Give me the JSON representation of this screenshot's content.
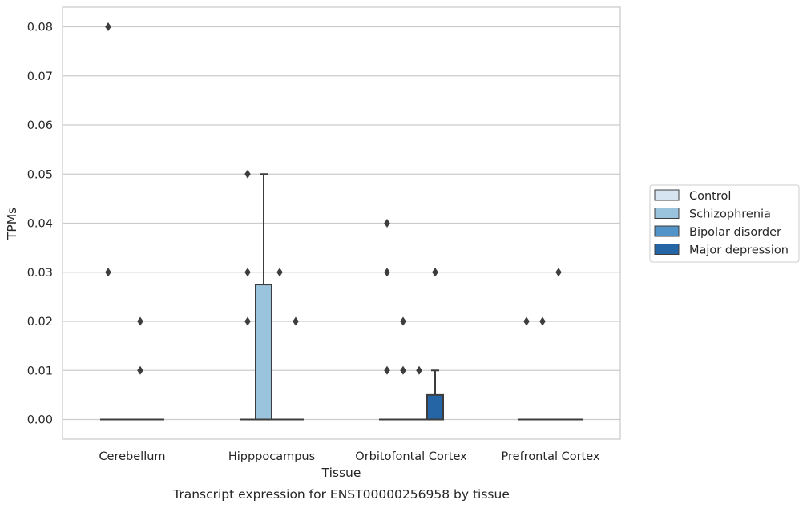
{
  "chart_data": {
    "type": "box",
    "caption": "Transcript expression for ENST00000256958 by tissue",
    "xlabel": "Tissue",
    "ylabel": "TPMs",
    "ylim": [
      -0.004,
      0.084
    ],
    "yticks": [
      "0.00",
      "0.01",
      "0.02",
      "0.03",
      "0.04",
      "0.05",
      "0.06",
      "0.07",
      "0.08"
    ],
    "ytick_values": [
      0,
      0.01,
      0.02,
      0.03,
      0.04,
      0.05,
      0.06,
      0.07,
      0.08
    ],
    "grid": "horizontal",
    "legend_position": "right",
    "categories": [
      "Cerebellum",
      "Hipppocampus",
      "Orbitofontal Cortex",
      "Prefrontal Cortex"
    ],
    "series": [
      {
        "name": "Control",
        "color": "#d6e4f2",
        "boxes": [
          {
            "q1": 0,
            "median": 0,
            "q3": 0,
            "whisker_low": 0,
            "whisker_high": 0,
            "outliers": [
              0.08,
              0.03
            ]
          },
          {
            "q1": 0,
            "median": 0,
            "q3": 0,
            "whisker_low": 0,
            "whisker_high": 0,
            "outliers": [
              0.05,
              0.03,
              0.02
            ]
          },
          {
            "q1": 0,
            "median": 0,
            "q3": 0,
            "whisker_low": 0,
            "whisker_high": 0,
            "outliers": [
              0.04,
              0.03,
              0.01
            ]
          },
          {
            "q1": 0,
            "median": 0,
            "q3": 0,
            "whisker_low": 0,
            "whisker_high": 0,
            "outliers": [
              0.02
            ]
          }
        ]
      },
      {
        "name": "Schizophrenia",
        "color": "#9ac3dd",
        "boxes": [
          {
            "q1": 0,
            "median": 0,
            "q3": 0,
            "whisker_low": 0,
            "whisker_high": 0,
            "outliers": []
          },
          {
            "q1": 0,
            "median": 0,
            "q3": 0.0275,
            "whisker_low": 0,
            "whisker_high": 0.05,
            "outliers": []
          },
          {
            "q1": 0,
            "median": 0,
            "q3": 0,
            "whisker_low": 0,
            "whisker_high": 0,
            "outliers": [
              0.02,
              0.01
            ]
          },
          {
            "q1": 0,
            "median": 0,
            "q3": 0,
            "whisker_low": 0,
            "whisker_high": 0,
            "outliers": [
              0.02
            ]
          }
        ]
      },
      {
        "name": "Bipolar disorder",
        "color": "#5294c7",
        "boxes": [
          {
            "q1": 0,
            "median": 0,
            "q3": 0,
            "whisker_low": 0,
            "whisker_high": 0,
            "outliers": [
              0.02,
              0.01
            ]
          },
          {
            "q1": 0,
            "median": 0,
            "q3": 0,
            "whisker_low": 0,
            "whisker_high": 0,
            "outliers": [
              0.03
            ]
          },
          {
            "q1": 0,
            "median": 0,
            "q3": 0,
            "whisker_low": 0,
            "whisker_high": 0,
            "outliers": [
              0.01
            ]
          },
          {
            "q1": 0,
            "median": 0,
            "q3": 0,
            "whisker_low": 0,
            "whisker_high": 0,
            "outliers": [
              0.03
            ]
          }
        ]
      },
      {
        "name": "Major depression",
        "color": "#2565a5",
        "boxes": [
          {
            "q1": 0,
            "median": 0,
            "q3": 0,
            "whisker_low": 0,
            "whisker_high": 0,
            "outliers": []
          },
          {
            "q1": 0,
            "median": 0,
            "q3": 0,
            "whisker_low": 0,
            "whisker_high": 0,
            "outliers": [
              0.02
            ]
          },
          {
            "q1": 0,
            "median": 0,
            "q3": 0.005,
            "whisker_low": 0,
            "whisker_high": 0.01,
            "outliers": [
              0.03,
              0.03
            ]
          },
          {
            "q1": 0,
            "median": 0,
            "q3": 0,
            "whisker_low": 0,
            "whisker_high": 0,
            "outliers": []
          }
        ]
      }
    ]
  }
}
